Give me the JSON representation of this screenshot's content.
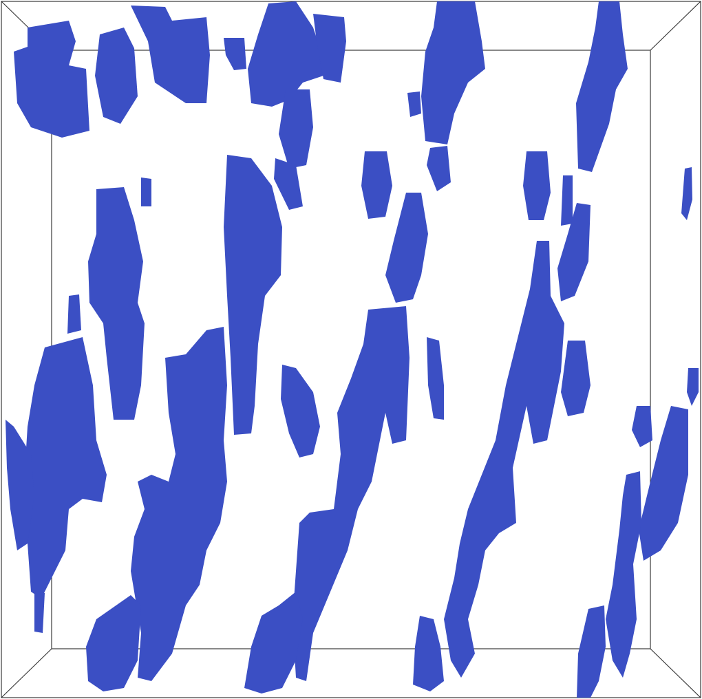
{
  "scene": {
    "background_color": "#ffffff",
    "structure_color": "#3b4fc4",
    "frame_color": "#3a3a3a"
  }
}
